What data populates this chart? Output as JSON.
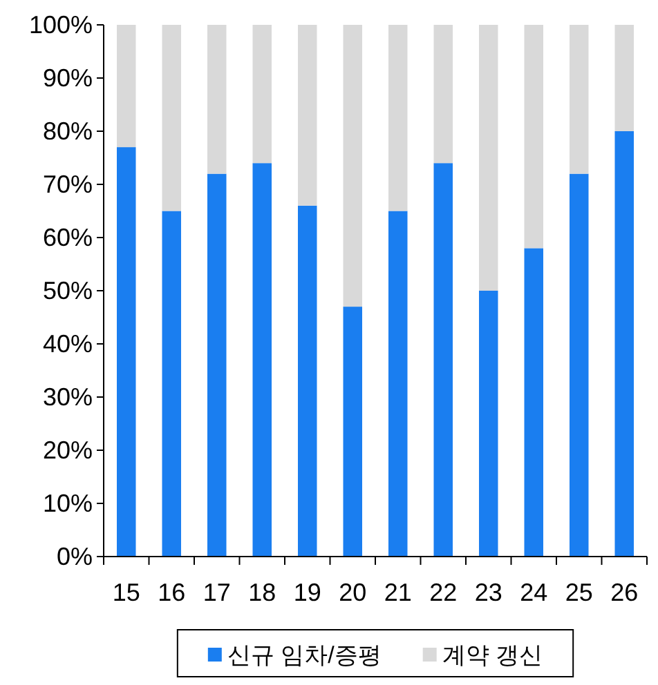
{
  "chart_data": {
    "type": "bar",
    "stacked": true,
    "categories": [
      "15",
      "16",
      "17",
      "18",
      "19",
      "20",
      "21",
      "22",
      "23",
      "24",
      "25",
      "26"
    ],
    "series": [
      {
        "name": "신규 임차/증평",
        "color": "#1a7ef0",
        "values": [
          77,
          65,
          72,
          74,
          66,
          47,
          65,
          74,
          50,
          58,
          72,
          80
        ]
      },
      {
        "name": "계약 갱신",
        "color": "#d9d9d9",
        "values": [
          23,
          35,
          28,
          26,
          34,
          53,
          35,
          26,
          50,
          42,
          28,
          20
        ]
      }
    ],
    "ylim": [
      0,
      100
    ],
    "yticks": [
      {
        "value": 0,
        "label": "0%"
      },
      {
        "value": 10,
        "label": "10%"
      },
      {
        "value": 20,
        "label": "20%"
      },
      {
        "value": 30,
        "label": "30%"
      },
      {
        "value": 40,
        "label": "40%"
      },
      {
        "value": 50,
        "label": "50%"
      },
      {
        "value": 60,
        "label": "60%"
      },
      {
        "value": 70,
        "label": "70%"
      },
      {
        "value": 80,
        "label": "80%"
      },
      {
        "value": 90,
        "label": "90%"
      },
      {
        "value": 100,
        "label": "100%"
      }
    ],
    "legend": "bottom"
  }
}
